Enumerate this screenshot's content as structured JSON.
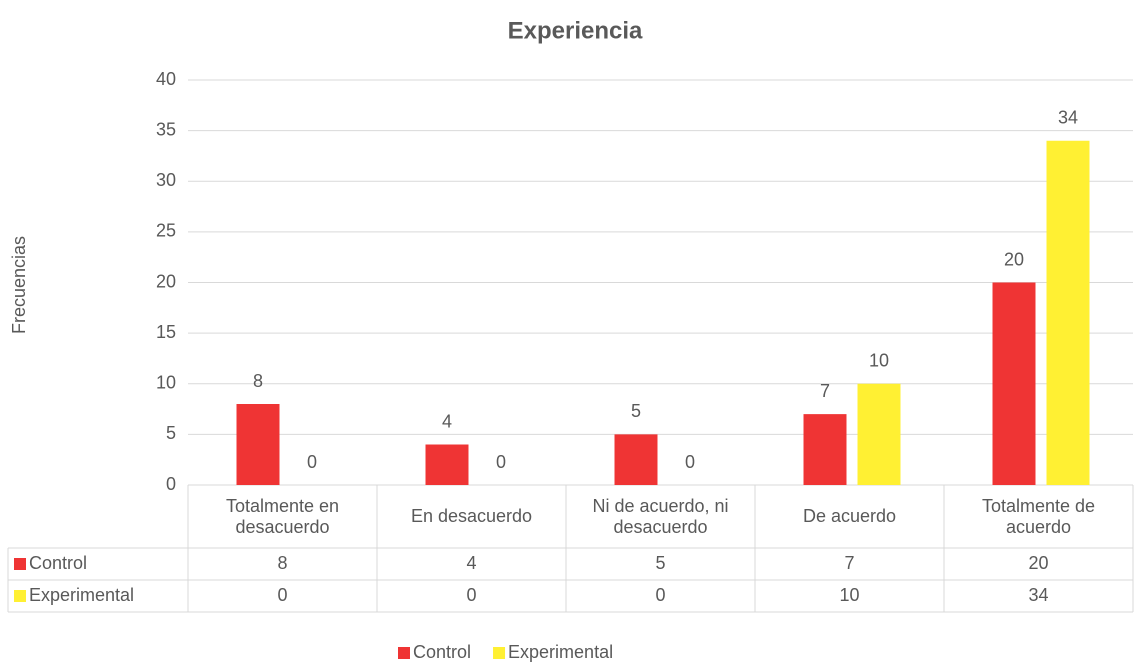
{
  "chart_data": {
    "type": "bar",
    "title": "Experiencia",
    "y_label": "Frecuencias",
    "categories": [
      "Totalmente en desacuerdo",
      "En desacuerdo",
      "Ni de acuerdo, ni desacuerdo",
      "De acuerdo",
      "Totalmente de acuerdo"
    ],
    "series": [
      {
        "name": "Control",
        "color": "#ef3434",
        "values": [
          8,
          4,
          5,
          7,
          20
        ]
      },
      {
        "name": "Experimental",
        "color": "#fff033",
        "values": [
          0,
          0,
          0,
          10,
          34
        ]
      }
    ],
    "ylim": [
      0,
      40
    ],
    "yticks": [
      0,
      5,
      10,
      15,
      20,
      25,
      30,
      35,
      40
    ],
    "grid": true,
    "legend": "bottom",
    "data_table": true
  }
}
